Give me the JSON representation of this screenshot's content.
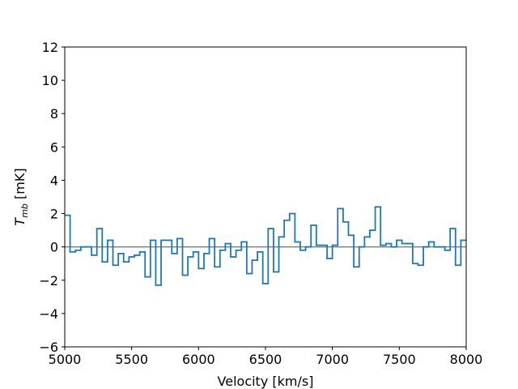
{
  "chart_data": {
    "type": "step",
    "xlabel": "Velocity [km/s]",
    "ylabel": {
      "symbol": "T",
      "subscript": "mb",
      "unit": "[mK]"
    },
    "x": [
      5020,
      5060,
      5100,
      5140,
      5180,
      5220,
      5260,
      5300,
      5340,
      5380,
      5420,
      5460,
      5500,
      5540,
      5580,
      5620,
      5660,
      5700,
      5740,
      5780,
      5820,
      5860,
      5900,
      5940,
      5980,
      6020,
      6060,
      6100,
      6140,
      6180,
      6220,
      6260,
      6300,
      6340,
      6380,
      6420,
      6460,
      6500,
      6540,
      6580,
      6620,
      6660,
      6700,
      6740,
      6780,
      6820,
      6860,
      6900,
      6940,
      6980,
      7020,
      7060,
      7100,
      7140,
      7180,
      7220,
      7260,
      7300,
      7340,
      7380,
      7420,
      7460,
      7500,
      7540,
      7580,
      7620,
      7660,
      7700,
      7740,
      7780,
      7820,
      7860,
      7900,
      7940,
      7980
    ],
    "series": [
      {
        "color": "#1f77b4",
        "values": [
          1.9,
          -0.3,
          -0.2,
          0,
          0,
          -0.5,
          1.1,
          -0.9,
          0.4,
          -1.1,
          -0.4,
          -0.9,
          -0.6,
          -0.5,
          -0.3,
          -1.8,
          0.4,
          -2.3,
          0.4,
          0.4,
          -0.4,
          0.5,
          -1.7,
          -0.6,
          -0.3,
          -1.3,
          -0.4,
          0.5,
          -1.2,
          -0.2,
          0.2,
          -0.6,
          -0.2,
          0.3,
          -1.6,
          -0.8,
          -0.3,
          -2.2,
          1.1,
          -1.5,
          0.6,
          1.6,
          2.0,
          0.3,
          -0.2,
          0,
          1.3,
          0.1,
          0.1,
          -0.7,
          0.1,
          2.3,
          1.5,
          0.7,
          -1.2,
          0,
          0.6,
          1.0,
          2.4,
          0.1,
          0.2,
          0,
          0.4,
          0.2,
          0.2,
          -1.0,
          -1.1,
          0,
          0.3,
          0,
          0,
          -0.2,
          1.1,
          -1.1,
          0.4
        ]
      }
    ],
    "baseline": {
      "value": 0,
      "color": "#808080"
    },
    "xlim": [
      5000,
      8000
    ],
    "xticks": [
      5000,
      5500,
      6000,
      6500,
      7000,
      7500,
      8000
    ],
    "ylim": [
      -6,
      12
    ],
    "yticks": [
      {
        "value": -6,
        "label": "−6"
      },
      {
        "value": -4,
        "label": "−4"
      },
      {
        "value": -2,
        "label": "−2"
      },
      0,
      2,
      4,
      6,
      8,
      10,
      12
    ]
  }
}
